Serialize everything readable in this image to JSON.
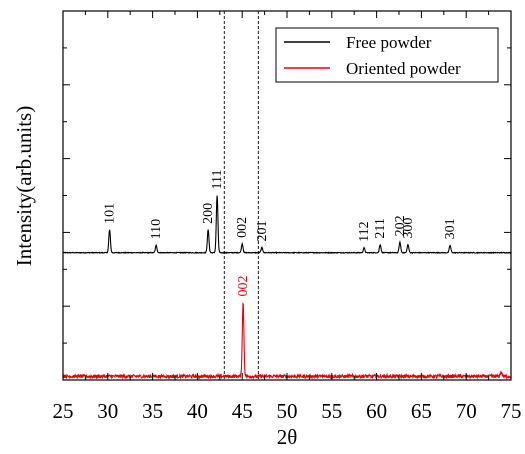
{
  "chart_data": {
    "type": "line",
    "title": "",
    "xlabel": "2θ",
    "ylabel": "Intensity(arb.units)",
    "xlim": [
      25,
      75
    ],
    "xticks": [
      "25",
      "30",
      "35",
      "40",
      "45",
      "50",
      "55",
      "60",
      "65",
      "70",
      "75"
    ],
    "x_tick_values": [
      25,
      30,
      35,
      40,
      45,
      50,
      55,
      60,
      65,
      70,
      75
    ],
    "ylim": [
      0,
      10
    ],
    "y_major_ticks": [
      0,
      2,
      4,
      6,
      8,
      10
    ],
    "y_tick_labels_shown": false,
    "reference_lines": [
      43,
      46.8
    ],
    "legend": {
      "placement": "top-right",
      "entries": [
        {
          "label": "Free powder",
          "color": "#000000"
        },
        {
          "label": "Oriented powder",
          "color": "#e8000b"
        }
      ]
    },
    "series": [
      {
        "name": "Free powder",
        "color": "#000000",
        "baseline": 3.45,
        "peaks": [
          {
            "x": 30.2,
            "height": 0.62,
            "label": "101"
          },
          {
            "x": 35.4,
            "height": 0.2,
            "label": "110"
          },
          {
            "x": 41.2,
            "height": 0.62,
            "label": "200"
          },
          {
            "x": 42.2,
            "height": 1.55,
            "label": "111"
          },
          {
            "x": 45.0,
            "height": 0.24,
            "label": "002"
          },
          {
            "x": 47.2,
            "height": 0.14,
            "label": "201"
          },
          {
            "x": 58.6,
            "height": 0.13,
            "label": "112"
          },
          {
            "x": 60.4,
            "height": 0.22,
            "label": "211"
          },
          {
            "x": 62.6,
            "height": 0.28,
            "label": "202"
          },
          {
            "x": 63.5,
            "height": 0.22,
            "label": "300"
          },
          {
            "x": 68.2,
            "height": 0.2,
            "label": "301"
          }
        ]
      },
      {
        "name": "Oriented powder",
        "color": "#e8000b",
        "baseline": 0.1,
        "peaks": [
          {
            "x": 45.1,
            "height": 2.0,
            "label": "002"
          },
          {
            "x": 73.9,
            "height": 0.12,
            "label": ""
          }
        ]
      }
    ]
  }
}
